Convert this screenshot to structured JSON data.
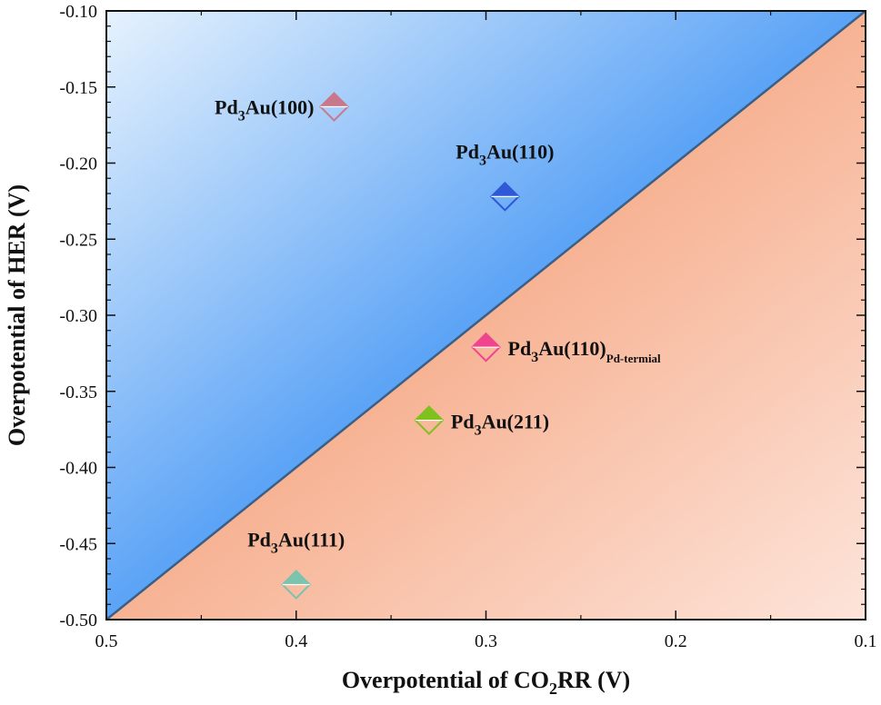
{
  "chart_data": {
    "type": "scatter",
    "title": "",
    "xlabel": {
      "main": "Overpotential of CO",
      "sub": "2",
      "tail": "RR (V)"
    },
    "ylabel": "Overpotential of HER (V)",
    "xlim": [
      0.5,
      0.1
    ],
    "ylim": [
      -0.5,
      -0.1
    ],
    "x_reversed": true,
    "x_ticks": [
      "0.5",
      "0.4",
      "0.3",
      "0.2",
      "0.1"
    ],
    "y_ticks": [
      "-0.10",
      "-0.15",
      "-0.20",
      "-0.25",
      "-0.30",
      "-0.35",
      "-0.40",
      "-0.45",
      "-0.50"
    ],
    "regions": {
      "upper": {
        "color_light": "#e6f2fd",
        "color_dark": "#4d9bf5"
      },
      "lower": {
        "color_light": "#fde4da",
        "color_dark": "#f6ae8d"
      },
      "diagonal_line_color": "#3a5f86"
    },
    "points": [
      {
        "label_main": "Pd",
        "label_sub": "3",
        "label_tail": "Au(100)",
        "label_subscript_after": "",
        "x": 0.38,
        "y": -0.163,
        "color": "#c9788b",
        "label_pos": "left"
      },
      {
        "label_main": "Pd",
        "label_sub": "3",
        "label_tail": "Au(110)",
        "label_subscript_after": "",
        "x": 0.29,
        "y": -0.222,
        "color": "#2e58d6",
        "label_pos": "above"
      },
      {
        "label_main": "Pd",
        "label_sub": "3",
        "label_tail": "Au(110)",
        "label_subscript_after": "Pd-termial",
        "x": 0.3,
        "y": -0.321,
        "color": "#f0448e",
        "label_pos": "right"
      },
      {
        "label_main": "Pd",
        "label_sub": "3",
        "label_tail": "Au(211)",
        "label_subscript_after": "",
        "x": 0.33,
        "y": -0.369,
        "color": "#7fc11f",
        "label_pos": "right"
      },
      {
        "label_main": "Pd",
        "label_sub": "3",
        "label_tail": "Au(111)",
        "label_subscript_after": "",
        "x": 0.4,
        "y": -0.477,
        "color": "#7cc3ad",
        "label_pos": "above"
      }
    ]
  }
}
